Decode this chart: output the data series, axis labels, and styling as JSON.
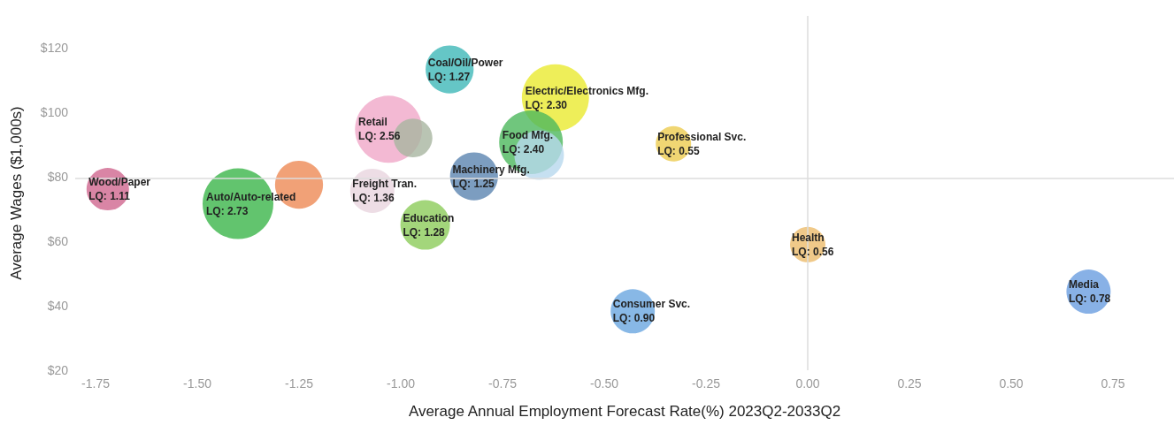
{
  "chart_data": {
    "type": "bubble",
    "xlabel": "Average Annual Employment Forecast Rate(%) 2023Q2-2033Q2",
    "ylabel": "Average Wages ($1,000s)",
    "x": [
      -1.72,
      -1.4,
      -1.25,
      -1.07,
      -1.03,
      -0.97,
      -0.88,
      -0.62,
      -0.68,
      -0.66,
      -0.82,
      -0.94,
      -0.33,
      -0.43,
      0.0,
      0.69
    ],
    "values": [
      76.2,
      71.7,
      77.6,
      75.7,
      94.8,
      92.1,
      113.4,
      104.6,
      90.8,
      86.8,
      80.2,
      65.1,
      90.3,
      38.3,
      59.0,
      44.4
    ],
    "sizes": [
      0.36,
      1,
      0.46,
      0.39,
      0.9,
      0.3,
      0.46,
      0.9,
      0.81,
      0.49,
      0.46,
      0.49,
      0.25,
      0.39,
      0.25,
      0.39
    ],
    "colors": [
      "#d0668f",
      "#3bb54a",
      "#ee8a55",
      "#e8d4df",
      "#f0a8c8",
      "#a8b5a0",
      "#3fb8b8",
      "#eaea30",
      "#4cb85c",
      "#b8d8ee",
      "#5b84b0",
      "#8ccc5a",
      "#eccc50",
      "#6aa6e0",
      "#ecbc6c",
      "#6a9ee0"
    ],
    "annotations": [
      {
        "text": "Wood/Paper\nLQ: 1.11",
        "x": -1.72,
        "y": 76.2
      },
      {
        "text": "Auto/Auto-related\nLQ: 2.73",
        "x": -1.4,
        "y": 71.7
      },
      {
        "text": "Freight Tran.\nLQ: 1.36",
        "x": -1.07,
        "y": 75.7
      },
      {
        "text": "Retail\nLQ: 2.56",
        "x": -1.03,
        "y": 94.8
      },
      {
        "text": "Coal/Oil/Power\nLQ: 1.27",
        "x": -0.88,
        "y": 113.4
      },
      {
        "text": "Electric/Electronics Mfg.\nLQ: 2.30",
        "x": -0.62,
        "y": 104.6
      },
      {
        "text": "Food Mfg.\nLQ: 2.40",
        "x": -0.68,
        "y": 90.8
      },
      {
        "text": "Machinery Mfg.\nLQ: 1.25",
        "x": -0.82,
        "y": 80.2
      },
      {
        "text": "Education\nLQ: 1.28",
        "x": -0.94,
        "y": 65.1
      },
      {
        "text": "Professional Svc.\nLQ: 0.55",
        "x": -0.33,
        "y": 90.3
      },
      {
        "text": "Consumer Svc.\nLQ: 0.90",
        "x": -0.43,
        "y": 38.3
      },
      {
        "text": "Health\nLQ: 0.56",
        "x": 0.0,
        "y": 59.0
      },
      {
        "text": "Media\nLQ: 0.78",
        "x": 0.69,
        "y": 44.4
      }
    ],
    "xlim": [
      -1.8,
      0.9
    ],
    "xticks": [
      {
        "value": -1.75,
        "label": "-1.75"
      },
      {
        "value": -1.5,
        "label": "-1.50"
      },
      {
        "value": -1.25,
        "label": "-1.25"
      },
      {
        "value": -1,
        "label": "-1.00"
      },
      {
        "value": -0.75,
        "label": "-0.75"
      },
      {
        "value": -0.5,
        "label": "-0.50"
      },
      {
        "value": -0.25,
        "label": "-0.25"
      },
      {
        "value": 0,
        "label": "0.00"
      },
      {
        "value": 0.25,
        "label": "0.25"
      },
      {
        "value": 0.5,
        "label": "0.50"
      },
      {
        "value": 0.75,
        "label": "0.75"
      }
    ],
    "ylim": [
      20,
      130
    ],
    "yticks": [
      {
        "value": 20,
        "label": "$20"
      },
      {
        "value": 40,
        "label": "$40"
      },
      {
        "value": 60,
        "label": "$60"
      },
      {
        "value": 80,
        "label": "$80"
      },
      {
        "value": 100,
        "label": "$100"
      },
      {
        "value": 120,
        "label": "$120"
      }
    ],
    "ref_lines": [
      {
        "axis": "x",
        "value": 0,
        "color": "#dddddd"
      },
      {
        "axis": "y",
        "value": 79.5,
        "color": "#dddddd"
      }
    ],
    "grid": false
  }
}
